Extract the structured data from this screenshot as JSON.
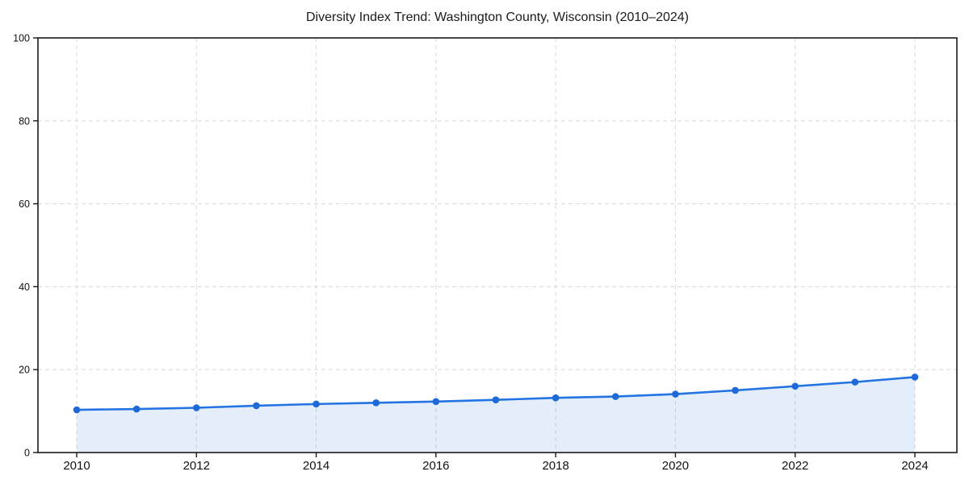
{
  "chart_data": {
    "type": "area",
    "title": "Diversity Index Trend: Washington County, Wisconsin (2010–2024)",
    "x": [
      2010,
      2011,
      2012,
      2013,
      2014,
      2015,
      2016,
      2017,
      2018,
      2019,
      2020,
      2021,
      2022,
      2023,
      2024
    ],
    "values": [
      10.3,
      10.5,
      10.8,
      11.3,
      11.7,
      12.0,
      12.3,
      12.7,
      13.2,
      13.5,
      14.1,
      15.0,
      16.0,
      17.0,
      18.2
    ],
    "xlabel": "",
    "ylabel": "",
    "ylim": [
      0,
      100
    ],
    "yticks": [
      0,
      20,
      40,
      60,
      80,
      100
    ],
    "xticks": [
      2010,
      2012,
      2014,
      2016,
      2018,
      2020,
      2022,
      2024
    ],
    "grid": true,
    "grid_style": "dashed",
    "legend_position": "none",
    "colors": {
      "line": "#2373e2",
      "marker": "#1e68d8",
      "fill": "rgba(35,115,226,0.12)",
      "grid": "#dcdcdc",
      "spine": "#1a1a1a",
      "tick_text": "#111111"
    }
  }
}
